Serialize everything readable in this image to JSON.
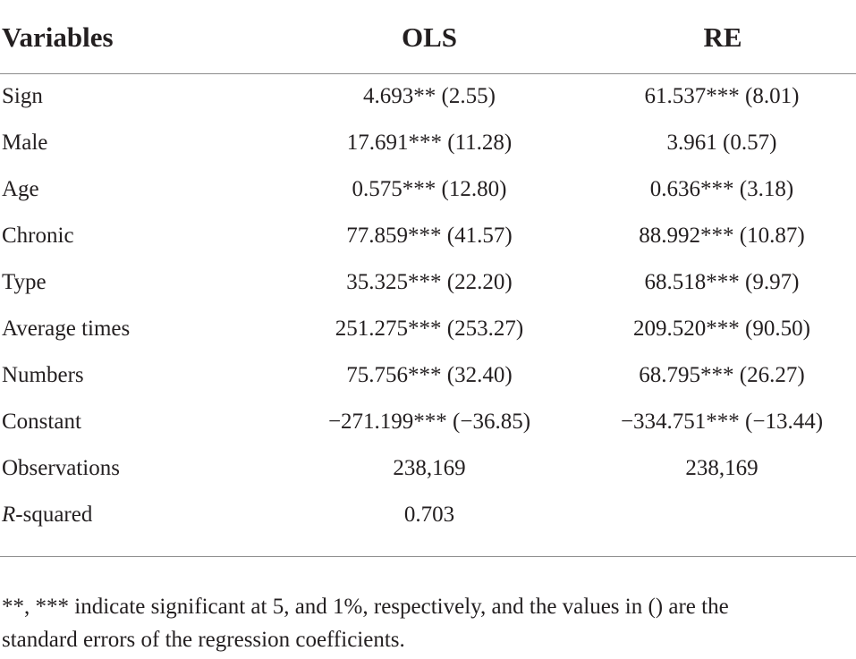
{
  "table": {
    "headers": {
      "variables": "Variables",
      "ols": "OLS",
      "re": "RE"
    },
    "rows": [
      {
        "variable": "Sign",
        "ols": "4.693** (2.55)",
        "re": "61.537*** (8.01)"
      },
      {
        "variable": "Male",
        "ols": "17.691*** (11.28)",
        "re": "3.961 (0.57)"
      },
      {
        "variable": "Age",
        "ols": "0.575*** (12.80)",
        "re": "0.636*** (3.18)"
      },
      {
        "variable": "Chronic",
        "ols": "77.859*** (41.57)",
        "re": "88.992*** (10.87)"
      },
      {
        "variable": "Type",
        "ols": "35.325*** (22.20)",
        "re": "68.518*** (9.97)"
      },
      {
        "variable": "Average times",
        "ols": "251.275*** (253.27)",
        "re": "209.520*** (90.50)"
      },
      {
        "variable": "Numbers",
        "ols": "75.756*** (32.40)",
        "re": "68.795*** (26.27)"
      },
      {
        "variable": "Constant",
        "ols": "−271.199*** (−36.85)",
        "re": "−334.751*** (−13.44)"
      },
      {
        "variable": "Observations",
        "ols": "238,169",
        "re": "238,169"
      },
      {
        "variable_italic": "R",
        "variable_rest": "-squared",
        "ols": "0.703",
        "re": ""
      }
    ]
  },
  "footnote": {
    "line1": "**, *** indicate significant at 5, and 1%, respectively, and the values in () are the",
    "line2": "standard errors of the regression coefficients."
  }
}
